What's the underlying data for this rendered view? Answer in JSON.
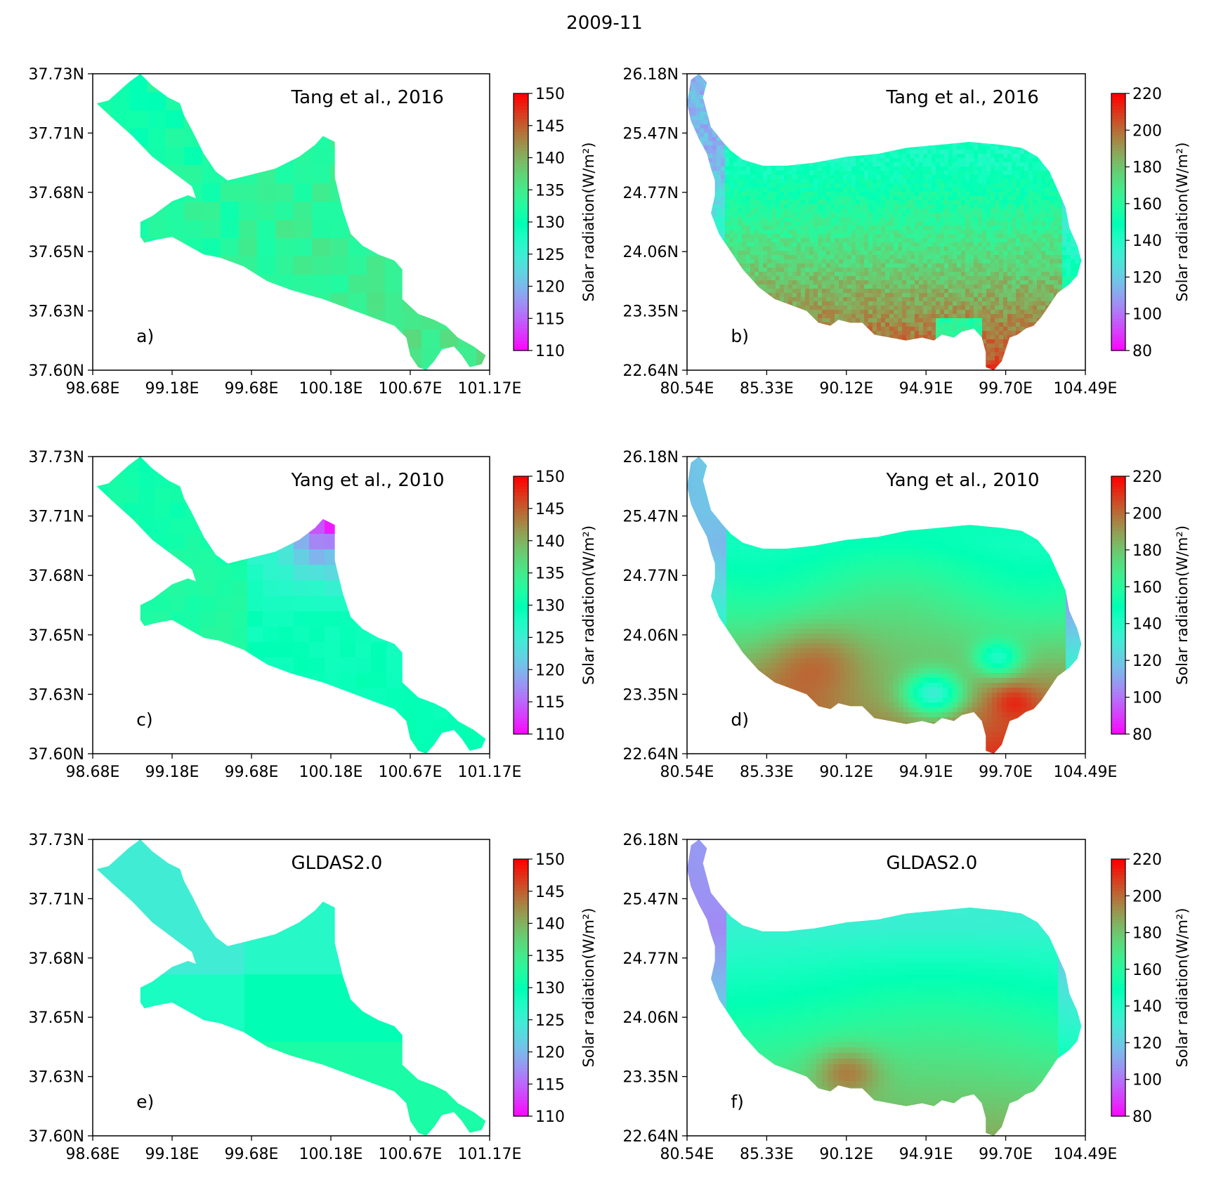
{
  "figure": {
    "title": "2009-11"
  },
  "chart_data": [
    {
      "type": "heatmap",
      "id": "a",
      "panel_label": "a)",
      "source": "Tang et al., 2016",
      "region": "small",
      "colorbar": {
        "label": "Solar radiation(W/m²)",
        "ticks": [
          "110",
          "115",
          "120",
          "125",
          "130",
          "135",
          "140",
          "145",
          "150"
        ],
        "range": [
          110,
          150
        ]
      },
      "x_ticks": [
        "98.68E",
        "99.18E",
        "99.68E",
        "100.18E",
        "100.67E",
        "101.17E"
      ],
      "y_ticks": [
        "37.73N",
        "37.71N",
        "37.68N",
        "37.65N",
        "37.63N",
        "37.60N"
      ],
      "colormap": "rainbow",
      "mean_value": 133,
      "variation": "blocky",
      "spatial_gradient": "slightly higher toward southeast"
    },
    {
      "type": "heatmap",
      "id": "b",
      "panel_label": "b)",
      "source": "Tang et al., 2016",
      "region": "large",
      "colorbar": {
        "label": "Solar radiation(W/m²)",
        "ticks": [
          "80",
          "100",
          "120",
          "140",
          "160",
          "180",
          "200",
          "220"
        ],
        "range": [
          80,
          220
        ]
      },
      "x_ticks": [
        "80.54E",
        "85.33E",
        "90.12E",
        "94.91E",
        "99.70E",
        "104.49E"
      ],
      "y_ticks": [
        "26.18N",
        "25.47N",
        "24.77N",
        "24.06N",
        "23.35N",
        "22.64N"
      ],
      "colormap": "rainbow",
      "north_value": 145,
      "south_value": 200,
      "variation": "fine-noisy"
    },
    {
      "type": "heatmap",
      "id": "c",
      "panel_label": "c)",
      "source": "Yang et al., 2010",
      "region": "small",
      "colorbar": {
        "label": "Solar radiation(W/m²)",
        "ticks": [
          "110",
          "115",
          "120",
          "125",
          "130",
          "135",
          "140",
          "145",
          "150"
        ],
        "range": [
          110,
          150
        ]
      },
      "x_ticks": [
        "98.68E",
        "99.18E",
        "99.68E",
        "100.18E",
        "100.67E",
        "101.17E"
      ],
      "y_ticks": [
        "37.73N",
        "37.71N",
        "37.68N",
        "37.65N",
        "37.63N",
        "37.60N"
      ],
      "colormap": "rainbow",
      "mean_value": 128,
      "low_value": 117,
      "variation": "smooth-blocks"
    },
    {
      "type": "heatmap",
      "id": "d",
      "panel_label": "d)",
      "source": "Yang et al., 2010",
      "region": "large",
      "colorbar": {
        "label": "Solar radiation(W/m²)",
        "ticks": [
          "80",
          "100",
          "120",
          "140",
          "160",
          "180",
          "200",
          "220"
        ],
        "range": [
          80,
          220
        ]
      },
      "x_ticks": [
        "80.54E",
        "85.33E",
        "90.12E",
        "94.91E",
        "99.70E",
        "104.49E"
      ],
      "y_ticks": [
        "26.18N",
        "25.47N",
        "24.77N",
        "24.06N",
        "23.35N",
        "22.64N"
      ],
      "colormap": "rainbow",
      "north_value": 148,
      "south_value": 200,
      "variation": "smooth"
    },
    {
      "type": "heatmap",
      "id": "e",
      "panel_label": "e)",
      "source": "GLDAS2.0",
      "region": "small",
      "colorbar": {
        "label": "Solar radiation(W/m²)",
        "ticks": [
          "110",
          "115",
          "120",
          "125",
          "130",
          "135",
          "140",
          "145",
          "150"
        ],
        "range": [
          110,
          150
        ]
      },
      "x_ticks": [
        "98.68E",
        "99.18E",
        "99.68E",
        "100.18E",
        "100.67E",
        "101.17E"
      ],
      "y_ticks": [
        "37.73N",
        "37.71N",
        "37.68N",
        "37.65N",
        "37.63N",
        "37.60N"
      ],
      "colormap": "rainbow",
      "mean_value": 130,
      "variation": "coarse-bands"
    },
    {
      "type": "heatmap",
      "id": "f",
      "panel_label": "f)",
      "source": "GLDAS2.0",
      "region": "large",
      "colorbar": {
        "label": "Solar radiation(W/m²)",
        "ticks": [
          "80",
          "100",
          "120",
          "140",
          "160",
          "180",
          "200",
          "220"
        ],
        "range": [
          80,
          220
        ]
      },
      "x_ticks": [
        "80.54E",
        "85.33E",
        "90.12E",
        "94.91E",
        "99.70E",
        "104.49E"
      ],
      "y_ticks": [
        "26.18N",
        "25.47N",
        "24.77N",
        "24.06N",
        "23.35N",
        "22.64N"
      ],
      "colormap": "rainbow",
      "north_value": 135,
      "south_value": 180,
      "variation": "smooth-coarse"
    }
  ]
}
